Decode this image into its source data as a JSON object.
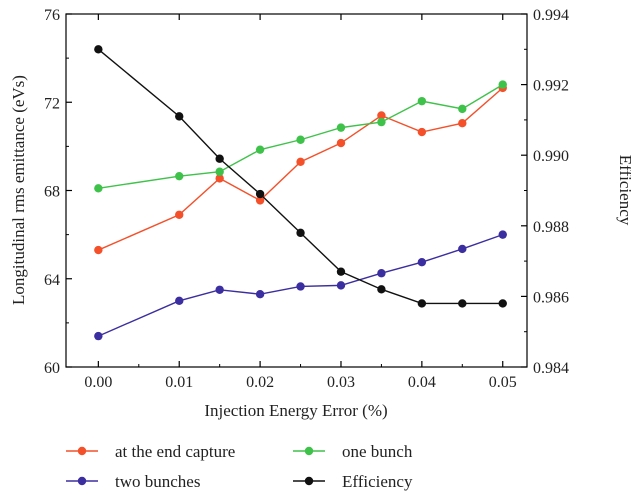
{
  "chart_data": {
    "type": "line",
    "title": "",
    "xlabel": "Injection Energy Error (%)",
    "ylabel_left": "Longitudinal rms emittance (eVs)",
    "ylabel_right": "Efficiency",
    "x": [
      0.0,
      0.01,
      0.015,
      0.02,
      0.025,
      0.03,
      0.035,
      0.04,
      0.045,
      0.05
    ],
    "xlim": [
      -0.004,
      0.053
    ],
    "ylim_left": [
      60,
      76
    ],
    "ylim_right": [
      0.984,
      0.994
    ],
    "x_ticks": [
      "0.00",
      "0.01",
      "0.02",
      "0.03",
      "0.04",
      "0.05"
    ],
    "y_ticks_left": [
      "60",
      "64",
      "68",
      "72",
      "76"
    ],
    "y_ticks_right": [
      "0.984",
      "0.986",
      "0.988",
      "0.990",
      "0.992",
      "0.994"
    ],
    "grid": false,
    "legend_position": "bottom",
    "series": [
      {
        "name": "at the end capture",
        "axis": "left",
        "color": "#f4502a",
        "values": [
          65.3,
          66.9,
          68.55,
          67.55,
          69.3,
          70.15,
          71.4,
          70.65,
          71.05,
          72.65
        ]
      },
      {
        "name": "one bunch",
        "axis": "left",
        "color": "#3fc24a",
        "values": [
          68.1,
          68.65,
          68.85,
          69.85,
          70.3,
          70.85,
          71.1,
          72.05,
          71.7,
          72.8
        ]
      },
      {
        "name": "two bunches",
        "axis": "left",
        "color": "#3b2ea0",
        "values": [
          61.4,
          63.0,
          63.5,
          63.3,
          63.65,
          63.7,
          64.25,
          64.75,
          65.35,
          66.0
        ]
      },
      {
        "name": "Efficiency",
        "axis": "right",
        "color": "#111111",
        "values": [
          0.993,
          0.9911,
          0.9899,
          0.9889,
          0.9878,
          0.9867,
          0.9862,
          0.9858,
          0.9858,
          0.9858
        ]
      }
    ]
  }
}
